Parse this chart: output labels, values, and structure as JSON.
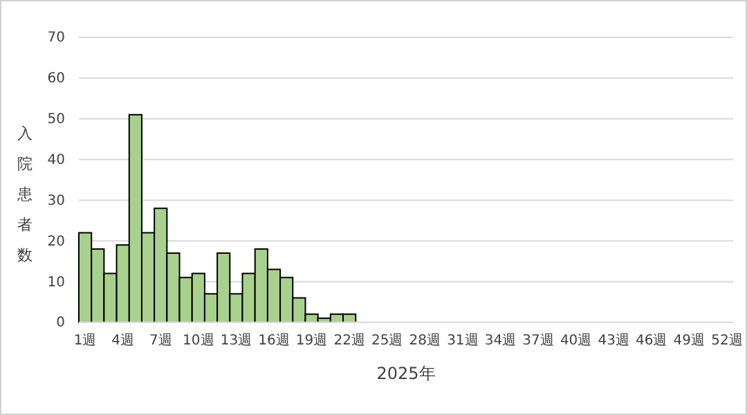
{
  "chart_data": {
    "type": "bar",
    "xlabel": "2025年",
    "ylabel": "入院患者数",
    "categories": [
      "1週",
      null,
      null,
      "4週",
      null,
      null,
      "7週",
      null,
      null,
      "10週",
      null,
      null,
      "13週",
      null,
      null,
      "16週",
      null,
      null,
      "19週",
      null,
      null,
      "22週",
      null,
      null,
      "25週",
      null,
      null,
      "28週",
      null,
      null,
      "31週",
      null,
      null,
      "34週",
      null,
      null,
      "37週",
      null,
      null,
      "40週",
      null,
      null,
      "43週",
      null,
      null,
      "46週",
      null,
      null,
      "49週",
      null,
      null,
      "52週"
    ],
    "values": [
      22,
      18,
      12,
      19,
      51,
      22,
      28,
      17,
      11,
      12,
      7,
      17,
      7,
      12,
      18,
      13,
      11,
      6,
      2,
      1,
      2,
      2,
      null,
      null,
      null,
      null,
      null,
      null,
      null,
      null,
      null,
      null,
      null,
      null,
      null,
      null,
      null,
      null,
      null,
      null,
      null,
      null,
      null,
      null,
      null,
      null,
      null,
      null,
      null,
      null,
      null,
      null
    ],
    "color": "#a9d18e",
    "ylim": [
      0,
      70
    ],
    "yticks": [
      0,
      10,
      20,
      30,
      40,
      50,
      60,
      70
    ],
    "grid": "y"
  }
}
